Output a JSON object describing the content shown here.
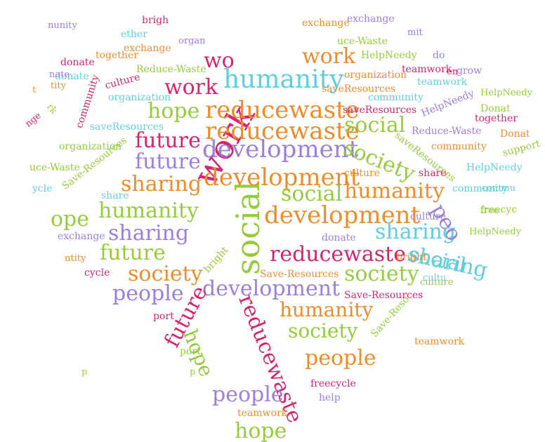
{
  "palette": {
    "magenta": "#d6246e",
    "purple": "#9b7fdc",
    "orange": "#ee8c2a",
    "green": "#95cc3c",
    "cyan": "#5fcfe0"
  },
  "words": [
    {
      "text": "work",
      "color": "magenta"
    },
    {
      "text": "social",
      "color": "green"
    },
    {
      "text": "reducewaste",
      "color": "orange"
    },
    {
      "text": "reducewaste",
      "color": "orange"
    },
    {
      "text": "development",
      "color": "purple"
    },
    {
      "text": "development",
      "color": "orange"
    },
    {
      "text": "development",
      "color": "orange"
    },
    {
      "text": "development",
      "color": "purple"
    },
    {
      "text": "humanity",
      "color": "cyan"
    },
    {
      "text": "humanity",
      "color": "green"
    },
    {
      "text": "humanity",
      "color": "orange"
    },
    {
      "text": "humanity",
      "color": "orange"
    },
    {
      "text": "society",
      "color": "green"
    },
    {
      "text": "society",
      "color": "orange"
    },
    {
      "text": "society",
      "color": "green"
    },
    {
      "text": "society",
      "color": "green"
    },
    {
      "text": "reducewaste",
      "color": "magenta"
    },
    {
      "text": "reducewaste",
      "color": "magenta"
    },
    {
      "text": "sharing",
      "color": "orange"
    },
    {
      "text": "sharing",
      "color": "purple"
    },
    {
      "text": "sharing",
      "color": "cyan"
    },
    {
      "text": "sharing",
      "color": "cyan"
    },
    {
      "text": "future",
      "color": "magenta"
    },
    {
      "text": "future",
      "color": "purple"
    },
    {
      "text": "future",
      "color": "green"
    },
    {
      "text": "future",
      "color": "magenta"
    },
    {
      "text": "hope",
      "color": "green"
    },
    {
      "text": "hope",
      "color": "green"
    },
    {
      "text": "hope",
      "color": "green"
    },
    {
      "text": "ope",
      "color": "green"
    },
    {
      "text": "people",
      "color": "purple"
    },
    {
      "text": "people",
      "color": "orange"
    },
    {
      "text": "people",
      "color": "purple"
    },
    {
      "text": "peo",
      "color": "purple"
    },
    {
      "text": "social",
      "color": "green"
    },
    {
      "text": "social",
      "color": "green"
    },
    {
      "text": "social",
      "color": "cyan"
    },
    {
      "text": "work",
      "color": "magenta"
    },
    {
      "text": "work",
      "color": "orange"
    },
    {
      "text": "wo",
      "color": "magenta"
    },
    {
      "text": "saveResources",
      "color": "magenta"
    },
    {
      "text": "saveResources",
      "color": "cyan"
    },
    {
      "text": "saveResources",
      "color": "green"
    },
    {
      "text": "saveResources",
      "color": "orange"
    },
    {
      "text": "Save-Resources",
      "color": "green"
    },
    {
      "text": "Save-Resources",
      "color": "orange"
    },
    {
      "text": "Save-Resources",
      "color": "magenta"
    },
    {
      "text": "Save-Reso",
      "color": "green"
    },
    {
      "text": "Reduce-Waste",
      "color": "green"
    },
    {
      "text": "Reduce-Waste",
      "color": "purple"
    },
    {
      "text": "uce-Waste",
      "color": "green"
    },
    {
      "text": "uce-Waste",
      "color": "green"
    },
    {
      "text": "HelpNeedy",
      "color": "green"
    },
    {
      "text": "HelpNeedy",
      "color": "purple"
    },
    {
      "text": "HelpNeedy",
      "color": "cyan"
    },
    {
      "text": "HelpNeedy",
      "color": "green"
    },
    {
      "text": "community",
      "color": "cyan"
    },
    {
      "text": "community",
      "color": "orange"
    },
    {
      "text": "community",
      "color": "cyan"
    },
    {
      "text": "community",
      "color": "magenta"
    },
    {
      "text": "organization",
      "color": "cyan"
    },
    {
      "text": "organization",
      "color": "green"
    },
    {
      "text": "organization",
      "color": "orange"
    },
    {
      "text": "organ",
      "color": "purple"
    },
    {
      "text": "culture",
      "color": "magenta"
    },
    {
      "text": "culture",
      "color": "orange"
    },
    {
      "text": "culture",
      "color": "purple"
    },
    {
      "text": "culture",
      "color": "green"
    },
    {
      "text": "teamwork",
      "color": "magenta"
    },
    {
      "text": "teamwork",
      "color": "orange"
    },
    {
      "text": "teamwork",
      "color": "cyan"
    },
    {
      "text": "together",
      "color": "orange"
    },
    {
      "text": "together",
      "color": "magenta"
    },
    {
      "text": "ether",
      "color": "cyan"
    },
    {
      "text": "exchange",
      "color": "purple"
    },
    {
      "text": "exchange",
      "color": "orange"
    },
    {
      "text": "exchange",
      "color": "purple"
    },
    {
      "text": "exchange",
      "color": "orange"
    },
    {
      "text": "donate",
      "color": "cyan"
    },
    {
      "text": "donate",
      "color": "magenta"
    },
    {
      "text": "donate",
      "color": "purple"
    },
    {
      "text": "Donat",
      "color": "orange"
    },
    {
      "text": "Donat",
      "color": "green"
    },
    {
      "text": "do",
      "color": "purple"
    },
    {
      "text": "share",
      "color": "cyan"
    },
    {
      "text": "share",
      "color": "magenta"
    },
    {
      "text": "freecycle",
      "color": "magenta"
    },
    {
      "text": "freecyc",
      "color": "green"
    },
    {
      "text": "cycle",
      "color": "magenta"
    },
    {
      "text": "ycle",
      "color": "cyan"
    },
    {
      "text": "bright",
      "color": "green"
    },
    {
      "text": "brigh",
      "color": "magenta"
    },
    {
      "text": "bright",
      "color": "orange"
    },
    {
      "text": "support",
      "color": "green"
    },
    {
      "text": "port",
      "color": "magenta"
    },
    {
      "text": "port",
      "color": "green"
    },
    {
      "text": "grow",
      "color": "purple"
    },
    {
      "text": "help",
      "color": "purple"
    },
    {
      "text": "HelpNeedy",
      "color": "green"
    },
    {
      "text": "ntity",
      "color": "orange"
    },
    {
      "text": "tity",
      "color": "orange"
    },
    {
      "text": "t",
      "color": "orange"
    },
    {
      "text": "p",
      "color": "green"
    },
    {
      "text": "p",
      "color": "green"
    },
    {
      "text": "rk",
      "color": "green"
    },
    {
      "text": "nge",
      "color": "magenta"
    },
    {
      "text": "nunity",
      "color": "purple"
    },
    {
      "text": "nate",
      "color": "purple"
    },
    {
      "text": "teamwork",
      "color": "orange"
    },
    {
      "text": "cultu",
      "color": "cyan"
    },
    {
      "text": "commu",
      "color": "cyan"
    },
    {
      "text": "free",
      "color": "green"
    },
    {
      "text": "mit",
      "color": "purple"
    },
    {
      "text": "en",
      "color": "magenta"
    }
  ]
}
